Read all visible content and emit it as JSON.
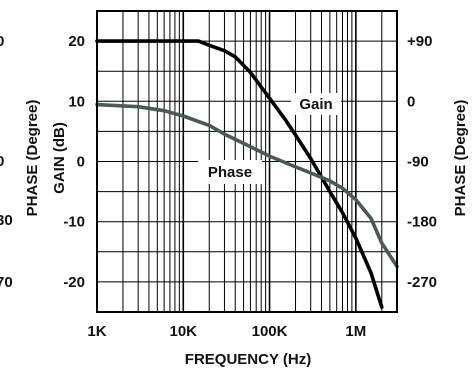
{
  "chart_data": {
    "type": "line",
    "xlabel": "FREQUENCY (Hz)",
    "ylabel": "GAIN (dB)",
    "y2label": "PHASE (Degree)",
    "x_scale": "log",
    "xlim": [
      1000,
      3000000
    ],
    "ylim": [
      -25,
      25
    ],
    "y2lim": [
      -315,
      135
    ],
    "x_ticks": [
      {
        "value": 1000,
        "label": "1K"
      },
      {
        "value": 10000,
        "label": "10K"
      },
      {
        "value": 100000,
        "label": "100K"
      },
      {
        "value": 1000000,
        "label": "1M"
      }
    ],
    "y_ticks": [
      {
        "value": 20,
        "label": "20"
      },
      {
        "value": 10,
        "label": "10"
      },
      {
        "value": 0,
        "label": "0"
      },
      {
        "value": -10,
        "label": "-10"
      },
      {
        "value": -20,
        "label": "-20"
      }
    ],
    "y2_ticks": [
      {
        "value": 90,
        "label": "+90"
      },
      {
        "value": 0,
        "label": "0"
      },
      {
        "value": -90,
        "label": "-90"
      },
      {
        "value": -180,
        "label": "-180"
      },
      {
        "value": -270,
        "label": "-270"
      }
    ],
    "grid": true,
    "series": [
      {
        "name": "Gain",
        "axis": "left",
        "color": "#000000",
        "x": [
          1000,
          3000,
          10000,
          15000,
          20000,
          30000,
          40000,
          60000,
          100000,
          150000,
          200000,
          300000,
          500000,
          700000,
          1000000,
          1500000,
          2000000
        ],
        "y": [
          20,
          20,
          20,
          20,
          19.3,
          18.4,
          17.4,
          14.8,
          10.5,
          7.1,
          4.4,
          0.5,
          -5,
          -8.5,
          -12.7,
          -18.5,
          -24.2
        ]
      },
      {
        "name": "Phase",
        "axis": "right",
        "color": "#4a5a55",
        "x": [
          1000,
          3000,
          6000,
          10000,
          20000,
          30000,
          50000,
          100000,
          200000,
          300000,
          500000,
          700000,
          1000000,
          1500000,
          2000000,
          3000000
        ],
        "y": [
          -5,
          -8,
          -14,
          -22,
          -36,
          -49,
          -63,
          -82,
          -98,
          -107,
          -119,
          -130,
          -147,
          -175,
          -212,
          -247
        ]
      }
    ],
    "annotations": [
      {
        "text": "Gain",
        "series": "Gain"
      },
      {
        "text": "Phase",
        "series": "Phase"
      }
    ]
  },
  "left_clipped_labels": [
    "0",
    "0",
    "30",
    "70"
  ],
  "left_clipped_title": "PHASE (Degree)"
}
